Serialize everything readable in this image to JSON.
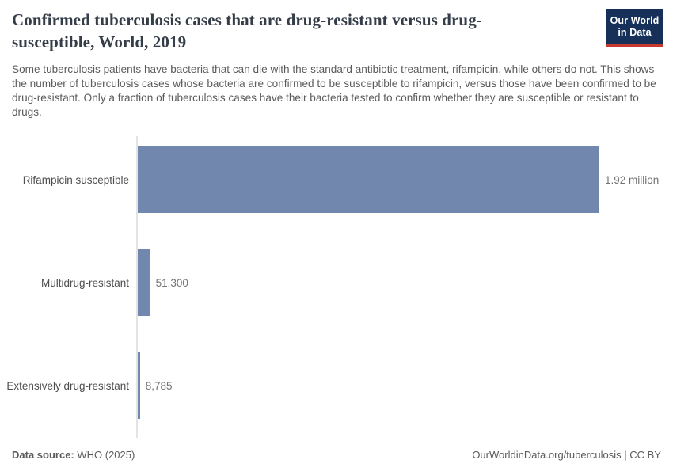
{
  "header": {
    "title": "Confirmed tuberculosis cases that are drug-resistant versus drug-susceptible, World, 2019",
    "subtitle": "Some tuberculosis patients have bacteria that can die with the standard antibiotic treatment, rifampicin, while others do not. This shows the number of tuberculosis cases whose bacteria are confirmed to be susceptible to rifampicin, versus those have been confirmed to be drug-resistant. Only a fraction of tuberculosis cases have their bacteria tested to confirm whether they are susceptible or resistant to drugs.",
    "logo": {
      "line1": "Our World",
      "line2": "in Data"
    }
  },
  "chart_data": {
    "type": "bar",
    "orientation": "horizontal",
    "title": "Confirmed tuberculosis cases that are drug-resistant versus drug-susceptible, World, 2019",
    "categories": [
      "Rifampicin susceptible",
      "Multidrug-resistant",
      "Extensively drug-resistant"
    ],
    "values": [
      1920000,
      51300,
      8785
    ],
    "value_labels": [
      "1.92 million",
      "51,300",
      "8,785"
    ],
    "xlim": [
      0,
      1920000
    ],
    "bar_color": "#7187ad",
    "grid": false,
    "legend": false,
    "xlabel": "",
    "ylabel": ""
  },
  "footer": {
    "source_label": "Data source:",
    "source_value": " WHO (2025)",
    "link": "OurWorldinData.org/tuberculosis",
    "separator": " | ",
    "license": "CC BY"
  },
  "colors": {
    "bar": "#7187ad",
    "axis_line": "#e4e4e4",
    "title_text": "#353d48",
    "subtitle_text": "#5b5b5b",
    "logo_background": "#163059",
    "logo_accent": "#c5392e"
  }
}
